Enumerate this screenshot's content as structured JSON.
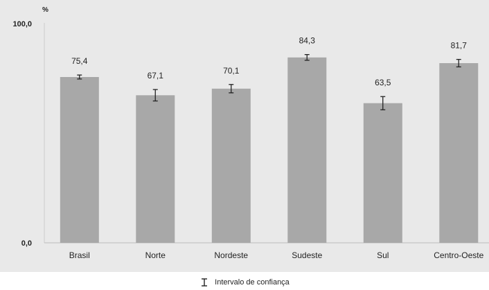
{
  "chart_data": {
    "type": "bar",
    "unit": "%",
    "categories": [
      "Brasil",
      "Norte",
      "Nordeste",
      "Sudeste",
      "Sul",
      "Centro-Oeste"
    ],
    "values": [
      75.4,
      67.1,
      70.1,
      84.3,
      63.5,
      81.7
    ],
    "value_labels": [
      "75,4",
      "67,1",
      "70,1",
      "84,3",
      "63,5",
      "81,7"
    ],
    "ci_low": [
      74.5,
      64.5,
      68.2,
      83.0,
      60.5,
      80.0
    ],
    "ci_high": [
      76.3,
      69.7,
      72.0,
      85.6,
      66.5,
      83.4
    ],
    "ylim": [
      0,
      100
    ],
    "yticks": [
      "0,0",
      "100,0"
    ],
    "grid": false,
    "bar_color": "#a8a8a8",
    "legend": {
      "label": "Intervalo de confiança",
      "position": "bottom-center"
    }
  }
}
